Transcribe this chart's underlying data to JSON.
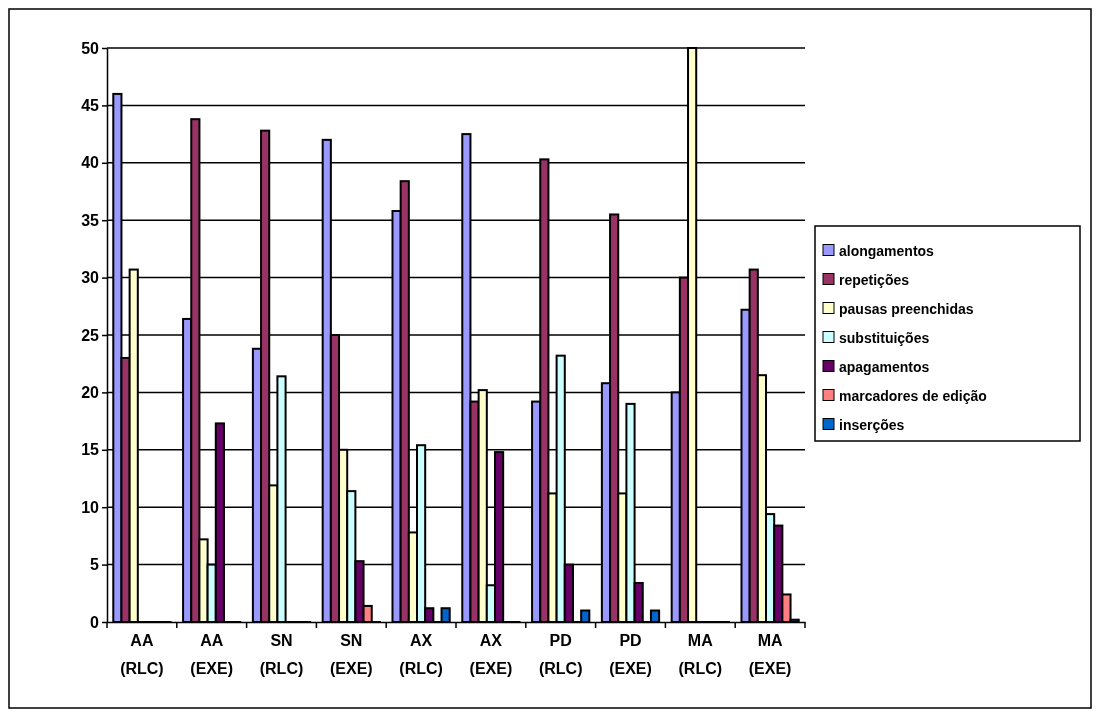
{
  "chart_data": {
    "type": "bar",
    "categories": [
      "AA (RLC)",
      "AA (EXE)",
      "SN (RLC)",
      "SN (EXE)",
      "AX (RLC)",
      "AX (EXE)",
      "PD (RLC)",
      "PD (EXE)",
      "MA (RLC)",
      "MA (EXE)"
    ],
    "series": [
      {
        "name": "alongamentos",
        "color": "#9999ff",
        "values": [
          46,
          26.4,
          23.8,
          42,
          35.8,
          42.5,
          19.2,
          20.8,
          20,
          27.2
        ]
      },
      {
        "name": "repetições",
        "color": "#993366",
        "values": [
          23,
          43.8,
          42.8,
          25,
          38.4,
          19.2,
          40.3,
          35.5,
          30,
          30.7
        ]
      },
      {
        "name": "pausas preenchidas",
        "color": "#ffffcc",
        "values": [
          30.7,
          7.2,
          11.9,
          15,
          7.8,
          20.2,
          11.2,
          11.2,
          50,
          21.5
        ]
      },
      {
        "name": "substituições",
        "color": "#ccffff",
        "values": [
          0,
          5,
          21.4,
          11.4,
          15.4,
          3.2,
          23.2,
          19,
          0,
          9.4
        ]
      },
      {
        "name": "apagamentos",
        "color": "#660066",
        "values": [
          0,
          17.3,
          0,
          5.3,
          1.2,
          14.8,
          5,
          3.4,
          0,
          8.4
        ]
      },
      {
        "name": "marcadores de edição",
        "color": "#ff8080",
        "values": [
          0,
          0,
          0,
          1.4,
          0,
          0,
          0,
          0,
          0,
          2.4
        ]
      },
      {
        "name": "inserções",
        "color": "#0066cc",
        "values": [
          0,
          0,
          0,
          0,
          1.2,
          0,
          1,
          1,
          0,
          0.2
        ]
      }
    ],
    "ylim": [
      0,
      50
    ],
    "yticks": [
      0,
      5,
      10,
      15,
      20,
      25,
      30,
      35,
      40,
      45,
      50
    ],
    "grid": "y",
    "legend": "right"
  }
}
